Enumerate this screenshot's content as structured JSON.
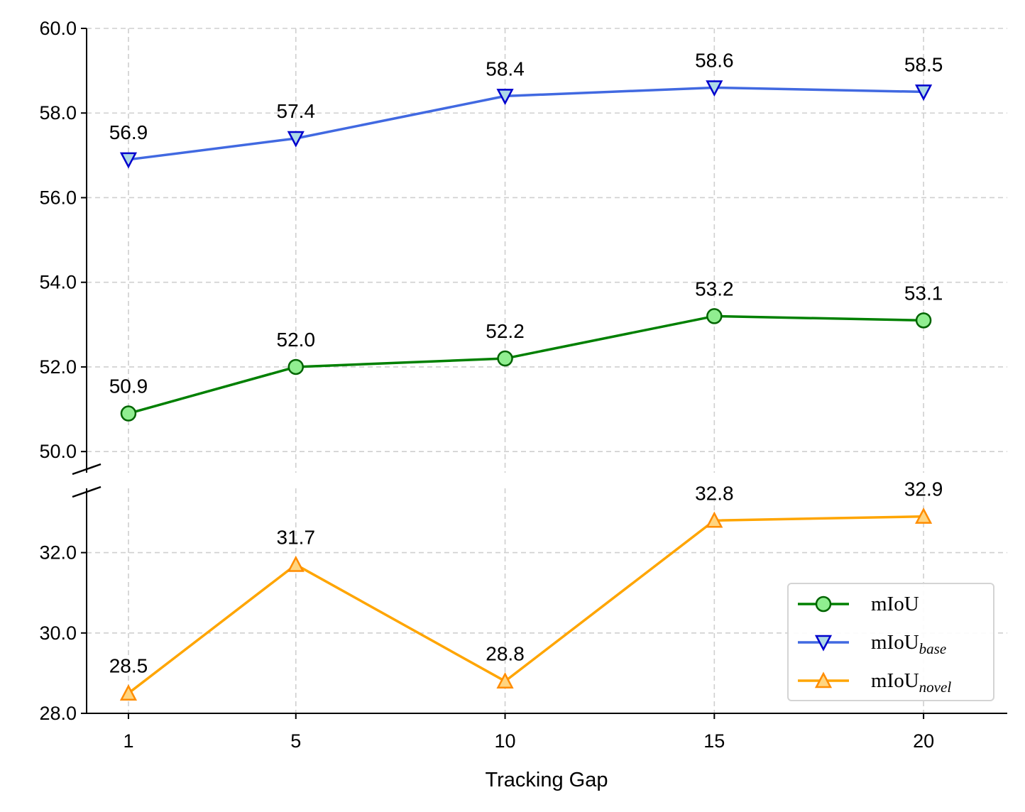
{
  "chart_data": {
    "type": "line",
    "xlabel": "Tracking Gap",
    "ylabel": "",
    "x": [
      1,
      5,
      10,
      15,
      20
    ],
    "x_tick_labels": [
      "1",
      "5",
      "10",
      "15",
      "20"
    ],
    "xlim": [
      0,
      22
    ],
    "y_axis_broken": true,
    "y_segments": [
      {
        "name": "upper",
        "ylim": [
          49.5,
          60.0
        ],
        "ticks": [
          "50.0",
          "52.0",
          "54.0",
          "56.0",
          "58.0",
          "60.0"
        ]
      },
      {
        "name": "lower",
        "ylim": [
          28.0,
          33.6
        ],
        "ticks": [
          "28.0",
          "30.0",
          "32.0"
        ]
      }
    ],
    "grid": true,
    "legend_position": "lower-right",
    "series": [
      {
        "name": "mIoU",
        "subscript": "",
        "segment": "upper",
        "values": [
          50.9,
          52.0,
          52.2,
          53.2,
          53.1
        ],
        "labels": [
          "50.9",
          "52.0",
          "52.2",
          "53.2",
          "53.1"
        ],
        "line_color": "#008000",
        "marker": "circle",
        "marker_fill": "#90ee90",
        "marker_edge": "#006400"
      },
      {
        "name": "mIoU",
        "subscript": "base",
        "segment": "upper",
        "values": [
          56.9,
          57.4,
          58.4,
          58.6,
          58.5
        ],
        "labels": [
          "56.9",
          "57.4",
          "58.4",
          "58.6",
          "58.5"
        ],
        "line_color": "#4169e1",
        "marker": "triangle-down",
        "marker_fill": "#add8e6",
        "marker_edge": "#0000cd"
      },
      {
        "name": "mIoU",
        "subscript": "novel",
        "segment": "lower",
        "values": [
          28.5,
          31.7,
          28.8,
          32.8,
          32.9
        ],
        "labels": [
          "28.5",
          "31.7",
          "28.8",
          "32.8",
          "32.9"
        ],
        "line_color": "#ffa500",
        "marker": "triangle-up",
        "marker_fill": "#ffd580",
        "marker_edge": "#ff8c00"
      }
    ]
  }
}
